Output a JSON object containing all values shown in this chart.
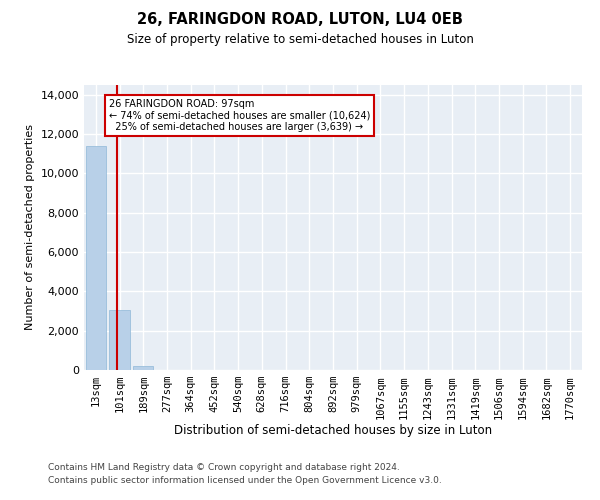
{
  "title": "26, FARINGDON ROAD, LUTON, LU4 0EB",
  "subtitle": "Size of property relative to semi-detached houses in Luton",
  "xlabel": "Distribution of semi-detached houses by size in Luton",
  "ylabel": "Number of semi-detached properties",
  "property_label": "26 FARINGDON ROAD: 97sqm",
  "pct_smaller": 74,
  "n_smaller": 10624,
  "pct_larger": 25,
  "n_larger": 3639,
  "bar_color": "#b8d0e8",
  "bar_edge_color": "#8fb8d8",
  "annotation_box_edge": "#cc0000",
  "vline_color": "#cc0000",
  "background_color": "#e8eef5",
  "grid_color": "#ffffff",
  "categories": [
    "13sqm",
    "101sqm",
    "189sqm",
    "277sqm",
    "364sqm",
    "452sqm",
    "540sqm",
    "628sqm",
    "716sqm",
    "804sqm",
    "892sqm",
    "979sqm",
    "1067sqm",
    "1155sqm",
    "1243sqm",
    "1331sqm",
    "1419sqm",
    "1506sqm",
    "1594sqm",
    "1682sqm",
    "1770sqm"
  ],
  "values": [
    11380,
    3050,
    200,
    10,
    5,
    2,
    1,
    1,
    0,
    0,
    0,
    0,
    0,
    0,
    0,
    0,
    0,
    0,
    0,
    0,
    0
  ],
  "ylim": [
    0,
    14500
  ],
  "yticks": [
    0,
    2000,
    4000,
    6000,
    8000,
    10000,
    12000,
    14000
  ],
  "footnote1": "Contains HM Land Registry data © Crown copyright and database right 2024.",
  "footnote2": "Contains public sector information licensed under the Open Government Licence v3.0."
}
